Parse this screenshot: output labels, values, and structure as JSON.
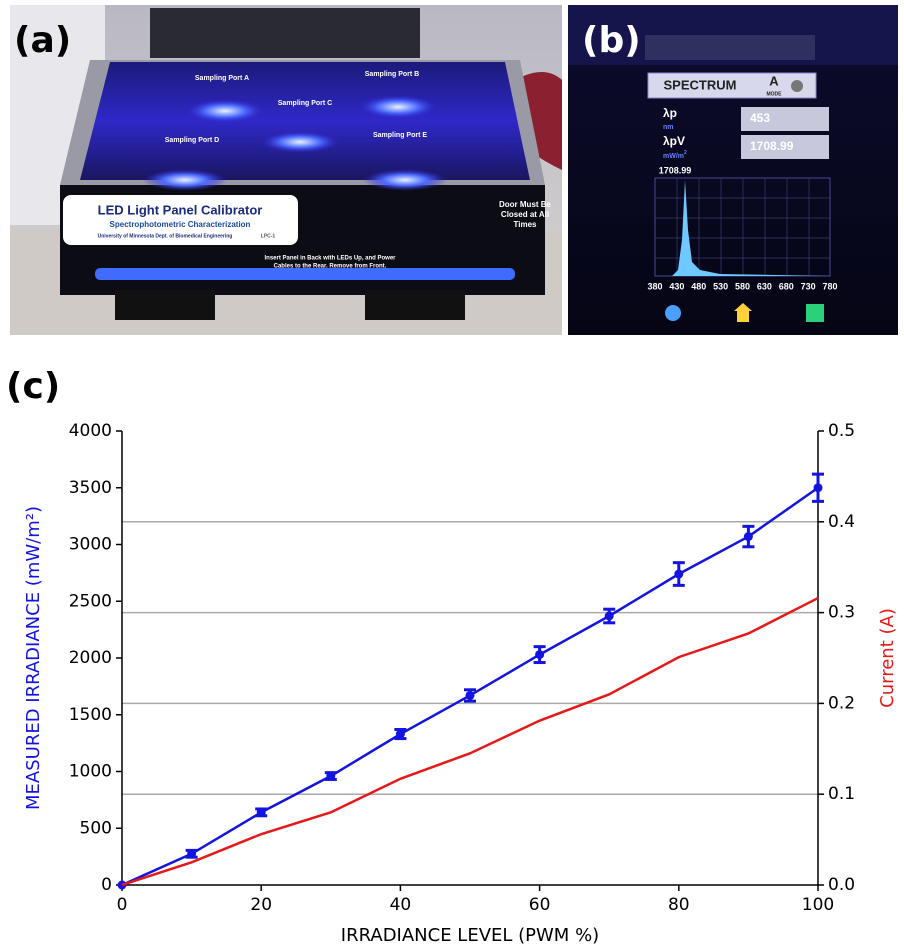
{
  "photo_a": {
    "label": "(a)",
    "calibrator_title": "LED Light Panel Calibrator",
    "calibrator_subtitle": "Spectrophotometric Characterization",
    "calibrator_affiliation": "University of Minnesota Dept. of Biomedical Engineering",
    "calibrator_id": "LPC-1",
    "door_note": [
      "Door Must Be",
      "Closed at All",
      "Times"
    ],
    "insert_note": [
      "Insert Panel in Back with LEDs Up, and Power",
      "Cables to the Rear. Remove from Front."
    ],
    "ports": [
      "Sampling Port A",
      "Sampling Port B",
      "Sampling Port C",
      "Sampling Port D",
      "Sampling Port E"
    ]
  },
  "photo_b": {
    "label": "(b)",
    "mode_title": "SPECTRUM",
    "mode_letter": "A",
    "mode_word": "MODE",
    "peak_label": "λp",
    "peak_unit": "nm",
    "peak_value": "453",
    "power_label": "λpV",
    "power_unit": "mW/m2",
    "power_value": "1708.99",
    "spectrum_max": "1708.99",
    "spectrum_ticks": [
      380,
      430,
      480,
      530,
      580,
      630,
      680,
      730,
      780
    ]
  },
  "chart_data": {
    "type": "line",
    "panel_label": "(c)",
    "x_label": "IRRADIANCE LEVEL (PWM %)",
    "y_label": "MEASURED IRRADIANCE (mW/m²)",
    "y2_label": "Current (A)",
    "x": [
      0,
      10,
      20,
      30,
      40,
      50,
      60,
      70,
      80,
      90,
      100
    ],
    "series": [
      {
        "color": "#1414e0",
        "values": [
          0,
          275,
          640,
          960,
          1330,
          1670,
          2030,
          2370,
          2740,
          3070,
          3500
        ],
        "errors": [
          null,
          30,
          30,
          30,
          40,
          50,
          70,
          60,
          100,
          90,
          120
        ]
      },
      {
        "color": "#e61919",
        "axis": "y2",
        "values": [
          0,
          0.025,
          0.056,
          0.08,
          0.117,
          0.145,
          0.181,
          0.21,
          0.251,
          0.277,
          0.316
        ]
      }
    ],
    "xlim": [
      0,
      100
    ],
    "xticks": [
      0,
      20,
      40,
      60,
      80,
      100
    ],
    "ylim": [
      0,
      4000
    ],
    "yticks": [
      0,
      500,
      1000,
      1500,
      2000,
      2500,
      3000,
      3500,
      4000
    ],
    "y2lim": [
      0,
      0.5
    ],
    "y2ticks": [
      {
        "value": 0,
        "label": "0.0"
      },
      0.1,
      0.2,
      0.3,
      0.4,
      0.5
    ],
    "grid": "y2"
  }
}
